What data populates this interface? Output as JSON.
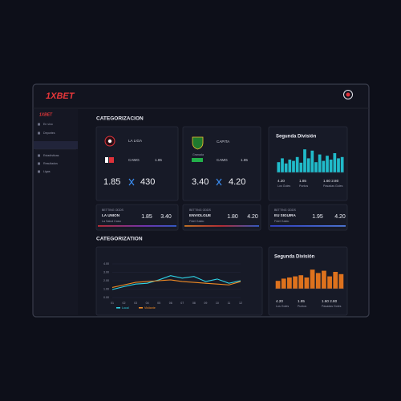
{
  "header": {
    "logo": "1XBET"
  },
  "sidebar": {
    "logo": "1XBET",
    "items": [
      "En vivo",
      "Deportes",
      "Estadísticas",
      "Resultados",
      "Ligas"
    ]
  },
  "main": {
    "section_title": "CATEGORIZACION",
    "section2_title": "CATEGORIZATION",
    "match_cards": [
      {
        "league": "LA LIGA",
        "market": "CAMG",
        "market_odds": "1.85",
        "odds": [
          "1.85",
          "430"
        ]
      },
      {
        "league": "CAPITA",
        "team": "Granada",
        "market": "CAMG",
        "market_odds": "1.85",
        "odds": [
          "3.40",
          "4.20"
        ]
      }
    ],
    "odds_cards": [
      {
        "tag": "BETTING ODDS",
        "team": "LA UNION",
        "sub": "La Salud Casa",
        "odds": [
          "1.85",
          "3.40"
        ]
      },
      {
        "tag": "BETTING ODDS",
        "team": "ENVIOLGUE",
        "sub": "Fidel Galdo",
        "odds": [
          "1.80",
          "4.20"
        ]
      },
      {
        "tag": "BETTING ODDS",
        "team": "EU SIGUIRA",
        "sub": "Fidel Galdo",
        "odds": [
          "1.95",
          "4.20"
        ]
      }
    ]
  },
  "chart_data": [
    {
      "type": "bar",
      "title": "Segunda División",
      "color": "#22c9d8",
      "values": [
        40,
        55,
        35,
        50,
        45,
        60,
        38,
        90,
        55,
        85,
        40,
        70,
        45,
        65,
        50,
        75,
        55,
        60
      ],
      "ylim": [
        0,
        100
      ],
      "annotations": [
        "4.20",
        "1.85",
        "1.60 2.80"
      ],
      "notes": [
        "Los Goles",
        "Puntos",
        "Pasadas Goles"
      ]
    },
    {
      "type": "line",
      "categories": [
        "01",
        "02",
        "03",
        "04",
        "05",
        "06",
        "07",
        "08",
        "09",
        "10",
        "11",
        "12"
      ],
      "series": [
        {
          "name": "Local",
          "color": "#2fd4e6",
          "values": [
            0.95,
            1.3,
            1.6,
            1.7,
            2.1,
            2.6,
            2.3,
            2.5,
            1.9,
            2.2,
            1.7,
            2.0
          ]
        },
        {
          "name": "Visitante",
          "color": "#f08a24",
          "values": [
            1.2,
            1.5,
            1.8,
            1.9,
            2.0,
            2.1,
            1.9,
            1.8,
            1.7,
            1.6,
            1.5,
            1.9
          ]
        }
      ],
      "ylim": [
        0,
        4
      ],
      "yticks": [
        {
          "value": 0,
          "label": "0.00"
        },
        {
          "value": 1,
          "label": "1.00"
        },
        {
          "value": 2,
          "label": "2.00"
        },
        {
          "value": 3,
          "label": "3.00"
        },
        {
          "value": 4,
          "label": "4.00"
        }
      ],
      "grid": true
    },
    {
      "type": "bar",
      "title": "Segunda División",
      "color": "#f07a1c",
      "values": [
        35,
        45,
        50,
        55,
        60,
        50,
        85,
        70,
        80,
        55,
        75,
        65
      ],
      "ylim": [
        0,
        100
      ],
      "annotations": [
        "4.20",
        "1.85",
        "1.60 2.80"
      ],
      "notes": [
        "Los Goles",
        "Puntos",
        "Pasadas Goles"
      ]
    }
  ]
}
